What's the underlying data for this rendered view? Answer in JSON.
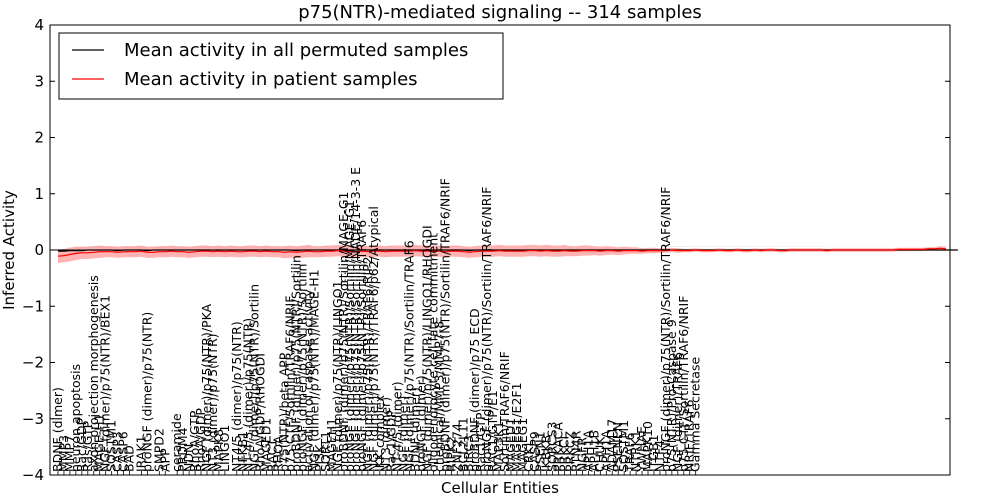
{
  "chart_data": {
    "type": "line",
    "title": "p75(NTR)-mediated signaling -- 314 samples",
    "xlabel": "Cellular Entities",
    "ylabel": "Inferred Activity",
    "ylim": [
      -4,
      4
    ],
    "yticks": [
      -4,
      -3,
      -2,
      -1,
      0,
      1,
      2,
      3,
      4
    ],
    "ytick_labels": [
      "−4",
      "−3",
      "−2",
      "−1",
      "0",
      "1",
      "2",
      "3",
      "4"
    ],
    "legend_position": "top-left",
    "series": [
      {
        "name": "Mean activity in all permuted samples",
        "color": "#000000",
        "band_color": "#c8c8c8",
        "values": [
          -0.02,
          -0.02,
          -0.01,
          -0.01,
          -0.01,
          0.0,
          0.0,
          0.0,
          0.0,
          0.0,
          -0.01,
          0.0,
          0.0,
          0.0,
          0.0,
          -0.01,
          0.0,
          0.0,
          0.0,
          0.0,
          0.0,
          0.0,
          0.0,
          0.0,
          0.0,
          0.0,
          0.0,
          0.0,
          0.0,
          0.0,
          0.0,
          0.0,
          0.0,
          0.0,
          0.0,
          0.0,
          0.0,
          0.0,
          0.0,
          0.0,
          -0.01,
          0.0,
          0.0,
          0.0,
          0.0,
          0.0,
          0.0,
          0.0,
          0.0,
          0.0,
          0.0,
          0.0,
          0.0,
          0.0,
          0.0,
          0.0,
          0.0,
          0.0,
          0.0,
          0.0,
          0.0,
          0.0,
          0.0,
          0.0,
          0.0,
          0.0,
          0.0,
          0.0,
          0.0,
          -0.01,
          0.0,
          0.0,
          0.0,
          0.0,
          0.0,
          0.0,
          0.0,
          0.0,
          0.0,
          0.0,
          0.0,
          0.0,
          0.0,
          0.0,
          0.0,
          0.0,
          0.0,
          0.0,
          0.0,
          0.0,
          0.0,
          0.0,
          0.0,
          0.0,
          0.0,
          0.0,
          0.0,
          0.0,
          0.0,
          0.0,
          0.0,
          0.0,
          0.0,
          0.0,
          0.0,
          0.0,
          0.0,
          0.0,
          0.0,
          0.0,
          0.0,
          0.0,
          0.0,
          0.0,
          0.0,
          0.0,
          0.0,
          0.0,
          0.0,
          0.0,
          0.0,
          0.0,
          0.0,
          0.0,
          0.0,
          0.0,
          0.0,
          0.0,
          0.0,
          0.0,
          0.0,
          0.0,
          0.0,
          0.0,
          0.0,
          0.0,
          0.0,
          0.0,
          0.0,
          0.0,
          0.0,
          0.0,
          0.0,
          0.0,
          0.0,
          0.0,
          0.0,
          0.0,
          0.0,
          0.0,
          0.0,
          0.0
        ],
        "spread": [
          0.06,
          0.06,
          0.06,
          0.06,
          0.06,
          0.06,
          0.06,
          0.06,
          0.06,
          0.06,
          0.06,
          0.06,
          0.06,
          0.06,
          0.06,
          0.06,
          0.06,
          0.06,
          0.06,
          0.06,
          0.06,
          0.06,
          0.06,
          0.06,
          0.06,
          0.06,
          0.06,
          0.06,
          0.06,
          0.06,
          0.06,
          0.06,
          0.06,
          0.06,
          0.06,
          0.06,
          0.06,
          0.06,
          0.06,
          0.06,
          0.06,
          0.06,
          0.06,
          0.06,
          0.06,
          0.06,
          0.06,
          0.06,
          0.06,
          0.06,
          0.06,
          0.06,
          0.06,
          0.06,
          0.06,
          0.06,
          0.06,
          0.06,
          0.06,
          0.06,
          0.06,
          0.06,
          0.06,
          0.06,
          0.06,
          0.06,
          0.06,
          0.06,
          0.06,
          0.06,
          0.06,
          0.06,
          0.06,
          0.06,
          0.06,
          0.06,
          0.06,
          0.06,
          0.06,
          0.06,
          0.06,
          0.06,
          0.06,
          0.06,
          0.06,
          0.06,
          0.06,
          0.06,
          0.06,
          0.06,
          0.06,
          0.06,
          0.06,
          0.06,
          0.06,
          0.06,
          0.06,
          0.06,
          0.06,
          0.06,
          0.06,
          0.06,
          0.07,
          0.07,
          0.07,
          0.07,
          0.07,
          0.07,
          0.07,
          0.07,
          0.07,
          0.07,
          0.07,
          0.07,
          0.07,
          0.07,
          0.07,
          0.07,
          0.07,
          0.07,
          0.07,
          0.07,
          0.07,
          0.07,
          0.07,
          0.07,
          0.07,
          0.07,
          0.07,
          0.07,
          0.07,
          0.07,
          0.07,
          0.07,
          0.07,
          0.07,
          0.07,
          0.07,
          0.07,
          0.07,
          0.07,
          0.07,
          0.07,
          0.07,
          0.07,
          0.07,
          0.07,
          0.07,
          0.07,
          0.07
        ]
      },
      {
        "name": "Mean activity in patient samples",
        "color": "#ff0000",
        "band_color": "#ff8080",
        "values": [
          -0.11,
          -0.1,
          -0.08,
          -0.06,
          -0.05,
          -0.05,
          -0.04,
          -0.03,
          -0.03,
          -0.03,
          -0.04,
          -0.03,
          -0.03,
          -0.03,
          -0.02,
          -0.04,
          -0.04,
          -0.03,
          -0.03,
          -0.02,
          -0.03,
          -0.03,
          -0.04,
          -0.03,
          -0.02,
          -0.02,
          -0.03,
          -0.02,
          -0.03,
          -0.02,
          -0.03,
          -0.03,
          -0.02,
          -0.02,
          -0.03,
          -0.02,
          -0.03,
          -0.03,
          -0.04,
          -0.03,
          -0.04,
          -0.03,
          -0.02,
          -0.03,
          -0.03,
          -0.02,
          -0.02,
          -0.01,
          -0.02,
          -0.03,
          -0.03,
          -0.02,
          -0.03,
          -0.02,
          -0.02,
          -0.03,
          -0.02,
          -0.02,
          -0.02,
          -0.02,
          -0.01,
          -0.02,
          -0.02,
          -0.02,
          -0.02,
          -0.03,
          -0.02,
          -0.02,
          -0.03,
          -0.04,
          -0.03,
          -0.02,
          -0.02,
          -0.02,
          -0.01,
          -0.02,
          -0.02,
          -0.02,
          -0.02,
          -0.01,
          -0.01,
          -0.02,
          -0.01,
          -0.02,
          -0.02,
          -0.01,
          -0.02,
          -0.02,
          -0.01,
          -0.01,
          -0.01,
          -0.02,
          -0.01,
          -0.01,
          -0.02,
          -0.01,
          -0.01,
          -0.01,
          -0.02,
          -0.01,
          -0.01,
          -0.01,
          -0.01,
          0.0,
          -0.01,
          -0.01,
          -0.01,
          0.0,
          -0.01,
          -0.01,
          -0.01,
          0.0,
          -0.01,
          -0.01,
          0.0,
          -0.01,
          -0.01,
          0.0,
          -0.01,
          0.0,
          0.0,
          -0.01,
          -0.01,
          0.0,
          0.0,
          0.0,
          0.0,
          0.0,
          0.0,
          -0.01,
          0.0,
          0.0,
          0.0,
          0.0,
          0.0,
          0.0,
          0.0,
          0.0,
          0.0,
          0.0,
          0.0,
          0.01,
          0.01,
          0.01,
          0.01,
          0.01,
          0.02,
          0.02,
          0.03,
          0.02
        ],
        "spread": [
          0.12,
          0.12,
          0.12,
          0.12,
          0.11,
          0.11,
          0.11,
          0.11,
          0.1,
          0.1,
          0.1,
          0.1,
          0.1,
          0.1,
          0.1,
          0.1,
          0.1,
          0.1,
          0.1,
          0.1,
          0.1,
          0.1,
          0.1,
          0.1,
          0.1,
          0.1,
          0.1,
          0.1,
          0.1,
          0.1,
          0.1,
          0.1,
          0.1,
          0.1,
          0.1,
          0.1,
          0.1,
          0.1,
          0.11,
          0.11,
          0.11,
          0.11,
          0.11,
          0.1,
          0.1,
          0.1,
          0.1,
          0.1,
          0.1,
          0.1,
          0.1,
          0.1,
          0.1,
          0.1,
          0.1,
          0.1,
          0.1,
          0.1,
          0.1,
          0.1,
          0.1,
          0.1,
          0.1,
          0.1,
          0.1,
          0.1,
          0.1,
          0.1,
          0.1,
          0.1,
          0.1,
          0.1,
          0.1,
          0.1,
          0.1,
          0.1,
          0.1,
          0.1,
          0.1,
          0.1,
          0.1,
          0.1,
          0.1,
          0.1,
          0.1,
          0.1,
          0.09,
          0.09,
          0.09,
          0.09,
          0.08,
          0.08,
          0.08,
          0.07,
          0.07,
          0.07,
          0.06,
          0.06,
          0.05,
          0.05,
          0.05,
          0.04,
          0.04,
          0.04,
          0.04,
          0.03,
          0.03,
          0.03,
          0.03,
          0.03,
          0.03,
          0.03,
          0.03,
          0.03,
          0.03,
          0.03,
          0.03,
          0.03,
          0.03,
          0.03,
          0.03,
          0.03,
          0.03,
          0.03,
          0.03,
          0.03,
          0.03,
          0.03,
          0.03,
          0.03,
          0.03,
          0.03,
          0.03,
          0.03,
          0.03,
          0.03,
          0.03,
          0.03,
          0.03,
          0.03,
          0.03,
          0.03,
          0.03,
          0.03,
          0.03,
          0.03,
          0.03,
          0.03,
          0.04,
          0.04
        ]
      }
    ],
    "x_count": 150,
    "category_labels": [
      {
        "i": 0,
        "text": "BDNF (dimer)"
      },
      {
        "i": 1,
        "text": "MMP3"
      },
      {
        "i": 2,
        "text": "MMP7"
      },
      {
        "i": 3,
        "text": "neuron apoptosis"
      },
      {
        "i": 4,
        "text": "Rac/GDP"
      },
      {
        "i": 5,
        "text": "Ras/GTP"
      },
      {
        "i": 6,
        "text": "axon projection morphogenesis"
      },
      {
        "i": 7,
        "text": "MAGE-H1"
      },
      {
        "i": 8,
        "text": "NGF (dimer)/p75(NTR)/BEX1"
      },
      {
        "i": 9,
        "text": "SQSTM1"
      },
      {
        "i": 10,
        "text": "CASP3"
      },
      {
        "i": 11,
        "text": "CASP6"
      },
      {
        "i": 12,
        "text": "BAD"
      },
      {
        "i": 14,
        "text": "IRAK1"
      },
      {
        "i": 15,
        "text": "proNGF (dimer)/p75(NTR)"
      },
      {
        "i": 17,
        "text": "SMPD2"
      },
      {
        "i": 18,
        "text": "APP"
      },
      {
        "i": 20,
        "text": "ceramide"
      },
      {
        "i": 21,
        "text": "PRDM4"
      },
      {
        "i": 22,
        "text": "NDN"
      },
      {
        "i": 23,
        "text": "RhoA/GTP"
      },
      {
        "i": 24,
        "text": "RhoA/GDP"
      },
      {
        "i": 25,
        "text": "NGF (dimer)/p75(NTR)/PKA"
      },
      {
        "i": 26,
        "text": "NT3 (dimer)/p75(NTR)"
      },
      {
        "i": 27,
        "text": "MAPK8"
      },
      {
        "i": 28,
        "text": "LINGO1"
      },
      {
        "i": 30,
        "text": "NT4/5 (dimer)/p75(NTR)"
      },
      {
        "i": 31,
        "text": "NFKB1"
      },
      {
        "i": 32,
        "text": "NT-4/5 (dimer)/p75(NTR)"
      },
      {
        "i": 33,
        "text": "NGF (dimer)/p75(NTR)/Sortilin"
      },
      {
        "i": 34,
        "text": "RhoA/GDP/RHOGDI"
      },
      {
        "i": 35,
        "text": "MAGED1"
      },
      {
        "i": 36,
        "text": "RAC1"
      },
      {
        "i": 37,
        "text": "RHOA"
      },
      {
        "i": 38,
        "text": "p75(NTR)/beta APP"
      },
      {
        "i": 39,
        "text": "p75 CTF/Sortilin/TRAF6/NRIF"
      },
      {
        "i": 40,
        "text": "proBDNF (dimer)/p75(NTR)/Sortilin"
      },
      {
        "i": 41,
        "text": "proNGF (dimer)/p75(NTR)/Sortilin"
      },
      {
        "i": 42,
        "text": "activation of caspase activity"
      },
      {
        "i": 43,
        "text": "NGF (dimer)/p75(NTR)/MAGE-H1"
      },
      {
        "i": 44,
        "text": "PI3K"
      },
      {
        "i": 45,
        "text": "SORT1"
      },
      {
        "i": 46,
        "text": "MAGEH1"
      },
      {
        "i": 47,
        "text": "NGF (dimer)/p75(NTR)/LINGO1"
      },
      {
        "i": 48,
        "text": "proBDNF (dimer)/p75(NTR)/Sortilin/MAGE-G1"
      },
      {
        "i": 49,
        "text": "proNGF (dimer)/p75(NTR)/Sortilin/MAGE-G1"
      },
      {
        "i": 50,
        "text": "proNGF (dimer)/p75(NTR)/Sortilin/NADE/14-3-3 E"
      },
      {
        "i": 51,
        "text": "proNGF (dimer)/p75(NTR)/Sortilin/TRAF6"
      },
      {
        "i": 52,
        "text": "NGF (dimer)/p75(NTR)/TRAF6/RIP2"
      },
      {
        "i": 53,
        "text": "NGF (dimer)/p75(NTR)/TRAF6/p62/Atypical"
      },
      {
        "i": 54,
        "text": "IKK complex"
      },
      {
        "i": 55,
        "text": "NT3 (dimer)"
      },
      {
        "i": 56,
        "text": "Rac1/GDP"
      },
      {
        "i": 57,
        "text": "NT-4/5 (dimer)"
      },
      {
        "i": 58,
        "text": "NGF (dimer)"
      },
      {
        "i": 59,
        "text": "NGF (dimer)/p75(NTR)/Sortilin/TRAF6"
      },
      {
        "i": 60,
        "text": "BDNF (dimer)"
      },
      {
        "i": 61,
        "text": "proNGF (dimer)"
      },
      {
        "i": 62,
        "text": "NGF (dimer)/p75(NTR)/LINGO1/RHOGDI"
      },
      {
        "i": 63,
        "text": "oligodendrocyte cell fate commitment"
      },
      {
        "i": 64,
        "text": "chemical/MMP3/MMP7-8"
      },
      {
        "i": 65,
        "text": "proBDNF (dimer)/p75(NTR)/Sortilin/TRAF6/NRIF"
      },
      {
        "i": 66,
        "text": "RIPK2"
      },
      {
        "i": 67,
        "text": "ZNF274"
      },
      {
        "i": 68,
        "text": "BCL2L11"
      },
      {
        "i": 69,
        "text": "BIRC3"
      },
      {
        "i": 70,
        "text": "proBDNF (dimer)/p75 ECD"
      },
      {
        "i": 71,
        "text": "Rac1/GTP"
      },
      {
        "i": 72,
        "text": "proNGF (dimer)/p75(NTR)/Sortilin/TRAF6/NRIF"
      },
      {
        "i": 73,
        "text": "RAC1/GTP/E1"
      },
      {
        "i": 74,
        "text": "MAP3K1"
      },
      {
        "i": 75,
        "text": "Sortilin/TRAF6/NRIF"
      },
      {
        "i": 76,
        "text": "MAGED1"
      },
      {
        "i": 77,
        "text": "MAGEG1/E2F1"
      },
      {
        "i": 78,
        "text": "MAGEG1"
      },
      {
        "i": 79,
        "text": "CRKL"
      },
      {
        "i": 80,
        "text": "CASP9"
      },
      {
        "i": 81,
        "text": "PSEN1"
      },
      {
        "i": 82,
        "text": "IKBKB"
      },
      {
        "i": 83,
        "text": "SORCS3"
      },
      {
        "i": 84,
        "text": "PRKACA"
      },
      {
        "i": 85,
        "text": "PRKCI"
      },
      {
        "i": 86,
        "text": "PRKCZ"
      },
      {
        "i": 87,
        "text": "RTN4R"
      },
      {
        "i": 88,
        "text": "NGFR"
      },
      {
        "i": 89,
        "text": "APH1A"
      },
      {
        "i": 90,
        "text": "APH1B"
      },
      {
        "i": 91,
        "text": "CHUK"
      },
      {
        "i": 92,
        "text": "APH1A"
      },
      {
        "i": 93,
        "text": "ADAM17"
      },
      {
        "i": 94,
        "text": "PSENEN"
      },
      {
        "i": 95,
        "text": "SQSTM1"
      },
      {
        "i": 96,
        "text": "TRAF6"
      },
      {
        "i": 97,
        "text": "NTRK1"
      },
      {
        "i": 98,
        "text": "YWHAE"
      },
      {
        "i": 99,
        "text": "MAPK10"
      },
      {
        "i": 100,
        "text": "ITGB1"
      },
      {
        "i": 101,
        "text": "NTF4"
      },
      {
        "i": 102,
        "text": "proNGF (dimer)/p75(NTR)/Sortilin/TRAF6/NRIF"
      },
      {
        "i": 103,
        "text": "p75(NTR)/Pro-Caspase 9"
      },
      {
        "i": 104,
        "text": "NGF (dimer)/TRAF6"
      },
      {
        "i": 105,
        "text": "p75 CTF/Sortilin/TRAF6/NRIF"
      },
      {
        "i": 106,
        "text": "NRIF/TRAF6"
      },
      {
        "i": 107,
        "text": "Gamma Secretase"
      }
    ]
  }
}
